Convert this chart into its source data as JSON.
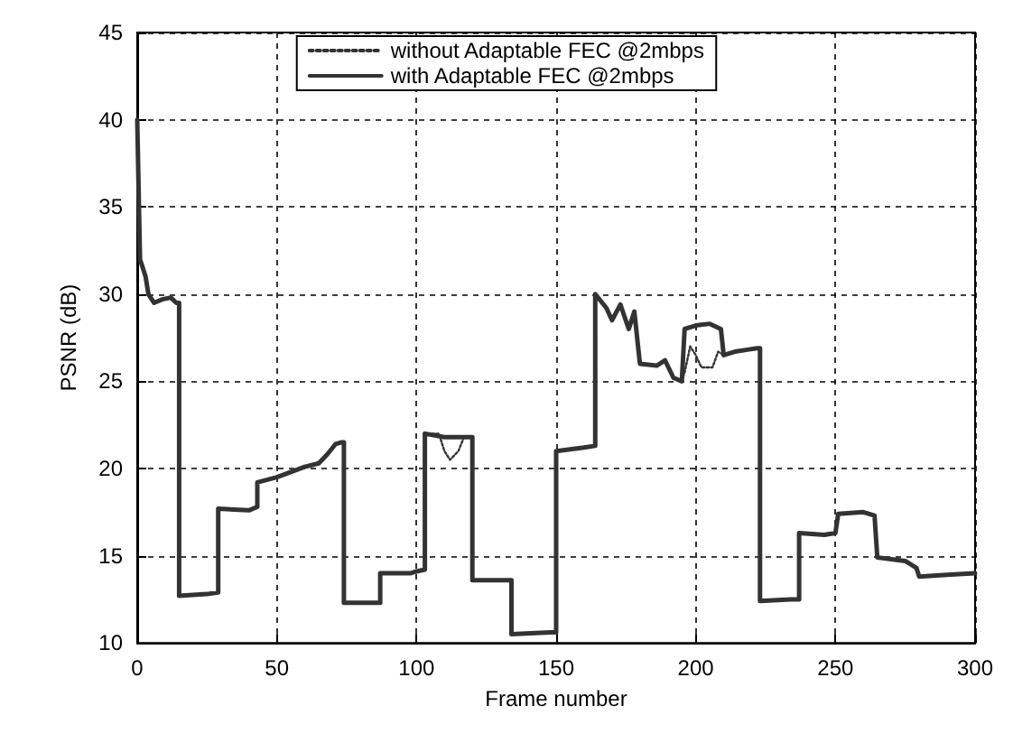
{
  "chart_data": {
    "type": "line",
    "xlabel": "Frame number",
    "ylabel": "PSNR (dB)",
    "xlim": [
      0,
      300
    ],
    "ylim": [
      10,
      45
    ],
    "xticks": [
      0,
      50,
      100,
      150,
      200,
      250,
      300
    ],
    "yticks": [
      10,
      15,
      20,
      25,
      30,
      35,
      40,
      45
    ],
    "grid": true,
    "legend": "top",
    "marker": "none",
    "series": [
      {
        "name": "without Adaptable FEC @2mbps",
        "color": "#333333",
        "line_style": "dotted",
        "x": [
          104,
          108,
          110,
          112,
          115,
          117,
          120,
          150,
          195,
          196,
          198,
          200,
          202,
          206,
          208,
          210
        ],
        "values": [
          22,
          22,
          21,
          20.5,
          21,
          21.8,
          21.8,
          null,
          25,
          25.5,
          27,
          26.5,
          25.8,
          25.8,
          26.7,
          26.5
        ]
      },
      {
        "name": "with Adaptable FEC @2mbps",
        "color": "#333333",
        "line_style": "solid",
        "x": [
          0,
          1,
          2,
          3,
          4,
          6,
          9,
          12,
          14,
          15,
          15,
          25,
          29,
          29,
          40,
          43,
          43,
          50,
          55,
          60,
          65,
          68,
          71,
          73,
          74,
          74,
          87,
          87,
          98,
          100,
          103,
          103,
          110,
          120,
          120,
          134,
          134,
          148,
          150,
          150,
          160,
          164,
          164,
          168,
          170,
          173,
          176,
          178,
          180,
          186,
          189,
          192,
          195,
          196,
          200,
          205,
          209,
          210,
          214,
          218,
          222,
          223,
          223,
          234,
          237,
          237,
          246,
          250,
          251,
          260,
          264,
          265,
          275,
          279,
          280,
          290,
          300
        ],
        "values": [
          40,
          32,
          31.5,
          31,
          30,
          29.5,
          29.7,
          29.8,
          29.5,
          29.5,
          12.7,
          12.8,
          12.9,
          17.7,
          17.6,
          17.8,
          19.2,
          19.5,
          19.8,
          20.1,
          20.3,
          20.8,
          21.4,
          21.5,
          21.5,
          12.3,
          12.3,
          14,
          14,
          14.1,
          14.2,
          22,
          21.8,
          21.8,
          13.6,
          13.6,
          10.5,
          10.6,
          10.6,
          21,
          21.2,
          21.3,
          30,
          29.2,
          28.5,
          29.4,
          28,
          29,
          26,
          25.9,
          26.2,
          25.2,
          25,
          28,
          28.2,
          28.3,
          28,
          26.5,
          26.7,
          26.8,
          26.9,
          26.9,
          12.4,
          12.5,
          12.5,
          16.3,
          16.2,
          16.3,
          17.4,
          17.5,
          17.3,
          14.9,
          14.7,
          14.3,
          13.8,
          13.9,
          14
        ]
      }
    ]
  }
}
